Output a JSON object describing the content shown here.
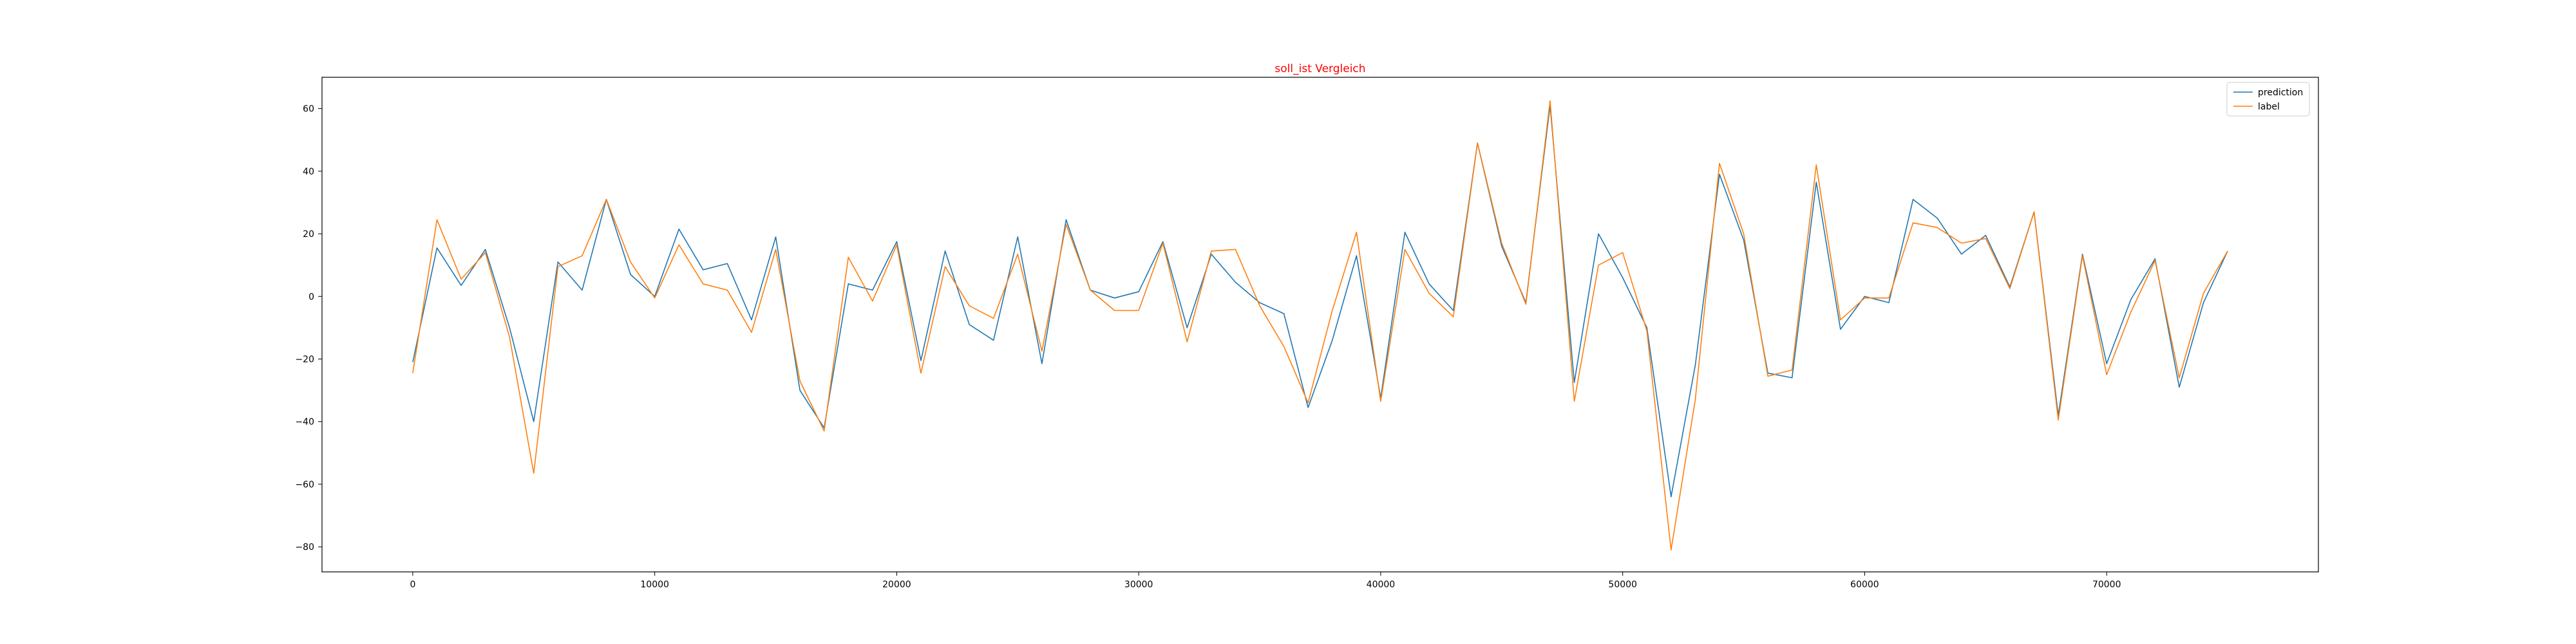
{
  "chart_data": {
    "type": "line",
    "title": "soll_ist Vergleich",
    "title_color": "#ff0000",
    "xlabel": "",
    "ylabel": "",
    "xlim": [
      -3750,
      78750
    ],
    "ylim": [
      -88,
      70
    ],
    "grid": false,
    "legend_position": "upper-right",
    "x_ticks": [
      0,
      10000,
      20000,
      30000,
      40000,
      50000,
      60000,
      70000
    ],
    "y_ticks": [
      -80,
      -60,
      -40,
      -20,
      0,
      20,
      40,
      60
    ],
    "x_tick_labels": [
      "0",
      "10000",
      "20000",
      "30000",
      "40000",
      "50000",
      "60000",
      "70000"
    ],
    "y_tick_labels": [
      "−80",
      "−60",
      "−40",
      "−20",
      "0",
      "20",
      "40",
      "60"
    ],
    "x": [
      0,
      1000,
      2000,
      3000,
      4000,
      5000,
      6000,
      7000,
      8000,
      9000,
      10000,
      11000,
      12000,
      13000,
      14000,
      15000,
      16000,
      17000,
      18000,
      19000,
      20000,
      21000,
      22000,
      23000,
      24000,
      25000,
      26000,
      27000,
      28000,
      29000,
      30000,
      31000,
      32000,
      33000,
      34000,
      35000,
      36000,
      37000,
      38000,
      39000,
      40000,
      41000,
      42000,
      43000,
      44000,
      45000,
      46000,
      47000,
      48000,
      49000,
      50000,
      51000,
      52000,
      53000,
      54000,
      55000,
      56000,
      57000,
      58000,
      59000,
      60000,
      61000,
      62000,
      63000,
      64000,
      65000,
      66000,
      67000,
      68000,
      69000,
      70000,
      71000,
      72000,
      73000,
      74000,
      75000
    ],
    "series": [
      {
        "name": "prediction",
        "color": "#1f77b4",
        "values": [
          -21,
          15.5,
          3.5,
          15,
          -10,
          -40,
          11,
          2,
          31,
          7,
          0,
          21.5,
          8.5,
          10.5,
          -7.5,
          19,
          -30,
          -42,
          4,
          2,
          17.5,
          -20.5,
          14.5,
          -9,
          -14,
          19,
          -21.5,
          24.5,
          2,
          -0.5,
          1.5,
          17.5,
          -10,
          13.5,
          4.5,
          -2,
          -5.5,
          -35.5,
          -14,
          13,
          -32.5,
          20.5,
          4,
          -4.5,
          49,
          16,
          -2,
          61,
          -27.5,
          20,
          6,
          -10,
          -64,
          -22,
          39,
          18,
          -24.5,
          -26,
          36.5,
          -10.5,
          0,
          -2,
          31,
          25,
          13.5,
          19.5,
          3,
          27,
          -38,
          13.5,
          -21.5,
          -1,
          12,
          -29,
          -2,
          14.5
        ]
      },
      {
        "name": "label",
        "color": "#ff7f0e",
        "values": [
          -24.5,
          24.5,
          5.5,
          14,
          -13,
          -56.5,
          9.5,
          13,
          31,
          11,
          -0.5,
          16.5,
          4,
          2,
          -11.5,
          15,
          -27,
          -43,
          12.5,
          -1.5,
          16.5,
          -24.5,
          9.5,
          -3,
          -7,
          13.5,
          -17.5,
          23,
          2,
          -4.5,
          -4.5,
          17,
          -14.5,
          14.5,
          15,
          -3,
          -16,
          -34,
          -4.5,
          20.5,
          -33.5,
          15,
          1,
          -6.5,
          49,
          17,
          -2.5,
          62.5,
          -33.5,
          10,
          14,
          -11,
          -81,
          -33,
          42.5,
          20,
          -25.5,
          -23.5,
          42,
          -7.5,
          -0.5,
          -0.5,
          23.5,
          22,
          17,
          18.5,
          2.5,
          27,
          -39.5,
          13,
          -25,
          -5,
          11.5,
          -26,
          1,
          14.5
        ]
      }
    ]
  }
}
